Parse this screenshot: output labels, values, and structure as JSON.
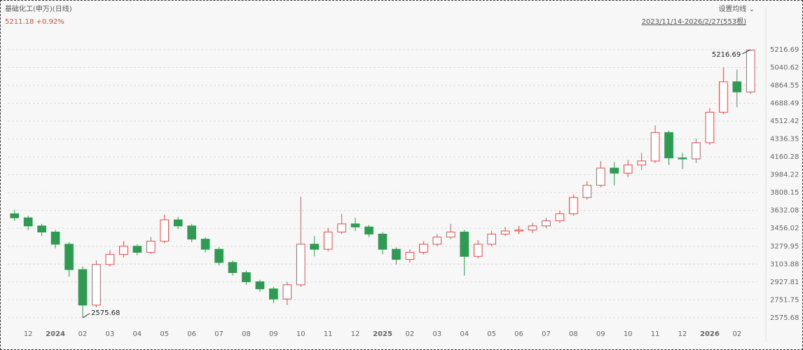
{
  "chart_data": {
    "type": "candlestick",
    "title": "基础化工(申万)(日线)",
    "subtitle": "5211.18 +0.92%",
    "menu_label": "设置均线 ⌄",
    "range_label": "2023/11/14-2026/2/27(553根)",
    "up_color": "#e84a4a",
    "down_color": "#2e9a52",
    "grid": true,
    "ylim": [
      2513,
      5423
    ],
    "yticks": [
      2575.68,
      2751.75,
      2927.81,
      3103.88,
      3279.95,
      3456.02,
      3632.08,
      3808.15,
      3984.22,
      4160.28,
      4336.35,
      4512.42,
      4688.49,
      4864.55,
      5040.62,
      5216.69
    ],
    "high_label": 5216.69,
    "low_label": 2575.68,
    "categories": [
      null,
      "12",
      null,
      "2024",
      null,
      "02",
      null,
      "03",
      null,
      "04",
      null,
      "05",
      null,
      "06",
      null,
      "07",
      null,
      "08",
      null,
      "09",
      null,
      "10",
      null,
      "11",
      null,
      "12",
      null,
      "2025",
      null,
      "02",
      null,
      "03",
      null,
      "04",
      null,
      "05",
      null,
      "06",
      null,
      "07",
      null,
      "08",
      null,
      "09",
      null,
      "10",
      null,
      "11",
      null,
      "12",
      null,
      "2026",
      null,
      "02",
      null
    ],
    "open": [
      3600,
      3560,
      3480,
      3420,
      3300,
      3050,
      2700,
      3100,
      3200,
      3280,
      3220,
      3330,
      3540,
      3480,
      3350,
      3250,
      3120,
      3020,
      2930,
      2860,
      2760,
      2900,
      3300,
      3250,
      3420,
      3500,
      3470,
      3400,
      3250,
      3150,
      3220,
      3300,
      3370,
      3420,
      3180,
      3300,
      3400,
      3430,
      3440,
      3480,
      3530,
      3600,
      3760,
      3880,
      4050,
      4000,
      4080,
      4120,
      4400,
      4150,
      4140,
      4300,
      4600,
      4900,
      4800
    ],
    "high": [
      3640,
      3580,
      3500,
      3440,
      3320,
      3080,
      3140,
      3240,
      3330,
      3300,
      3370,
      3590,
      3570,
      3500,
      3370,
      3270,
      3140,
      3040,
      2950,
      2880,
      2930,
      3768,
      3380,
      3460,
      3600,
      3560,
      3490,
      3420,
      3270,
      3250,
      3330,
      3400,
      3500,
      3440,
      3340,
      3430,
      3470,
      3480,
      3510,
      3560,
      3630,
      3790,
      3920,
      4120,
      4110,
      4130,
      4200,
      4470,
      4420,
      4200,
      4340,
      4640,
      5040,
      5020,
      5216.69
    ],
    "low": [
      3530,
      3440,
      3380,
      3260,
      2980,
      2575.68,
      2680,
      3080,
      3170,
      3190,
      3200,
      3310,
      3450,
      3320,
      3220,
      3090,
      2990,
      2900,
      2830,
      2720,
      2700,
      2880,
      3180,
      3230,
      3400,
      3430,
      3370,
      3200,
      3100,
      3120,
      3200,
      3280,
      3350,
      2990,
      3160,
      3280,
      3380,
      3400,
      3410,
      3460,
      3510,
      3580,
      3740,
      3860,
      3880,
      3960,
      4030,
      4100,
      4080,
      4040,
      4100,
      4280,
      4580,
      4650,
      4780
    ],
    "close": [
      3560,
      3480,
      3420,
      3300,
      3050,
      2700,
      3100,
      3200,
      3280,
      3220,
      3330,
      3540,
      3480,
      3350,
      3250,
      3120,
      3020,
      2930,
      2860,
      2760,
      2900,
      3300,
      3250,
      3420,
      3500,
      3470,
      3400,
      3250,
      3150,
      3220,
      3300,
      3370,
      3420,
      3180,
      3300,
      3400,
      3430,
      3440,
      3480,
      3530,
      3600,
      3760,
      3880,
      4050,
      4000,
      4080,
      4120,
      4400,
      4150,
      4140,
      4300,
      4600,
      4900,
      4800,
      5211.18
    ]
  }
}
